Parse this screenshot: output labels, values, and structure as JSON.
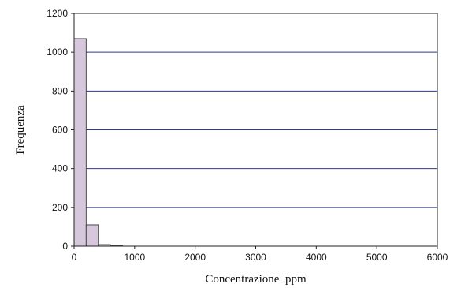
{
  "chart_data": {
    "type": "bar",
    "xlabel": "Concentrazione  ppm",
    "ylabel": "Frequenza",
    "xlim": [
      0,
      6000
    ],
    "ylim": [
      0,
      1200
    ],
    "x_ticks": [
      0,
      1000,
      2000,
      3000,
      4000,
      5000,
      6000
    ],
    "y_ticks": [
      0,
      200,
      400,
      600,
      800,
      1000,
      1200
    ],
    "grid": "horizontal",
    "bin_width": 200,
    "bins": [
      {
        "x_start": 0,
        "x_end": 200,
        "value": 1070
      },
      {
        "x_start": 200,
        "x_end": 400,
        "value": 110
      },
      {
        "x_start": 400,
        "x_end": 600,
        "value": 8
      },
      {
        "x_start": 600,
        "x_end": 800,
        "value": 2
      }
    ],
    "colors": {
      "bar_fill": "#d6c7dc",
      "bar_stroke": "#4a4a4a",
      "grid": "#2e3a8c",
      "axis": "#222222"
    }
  }
}
